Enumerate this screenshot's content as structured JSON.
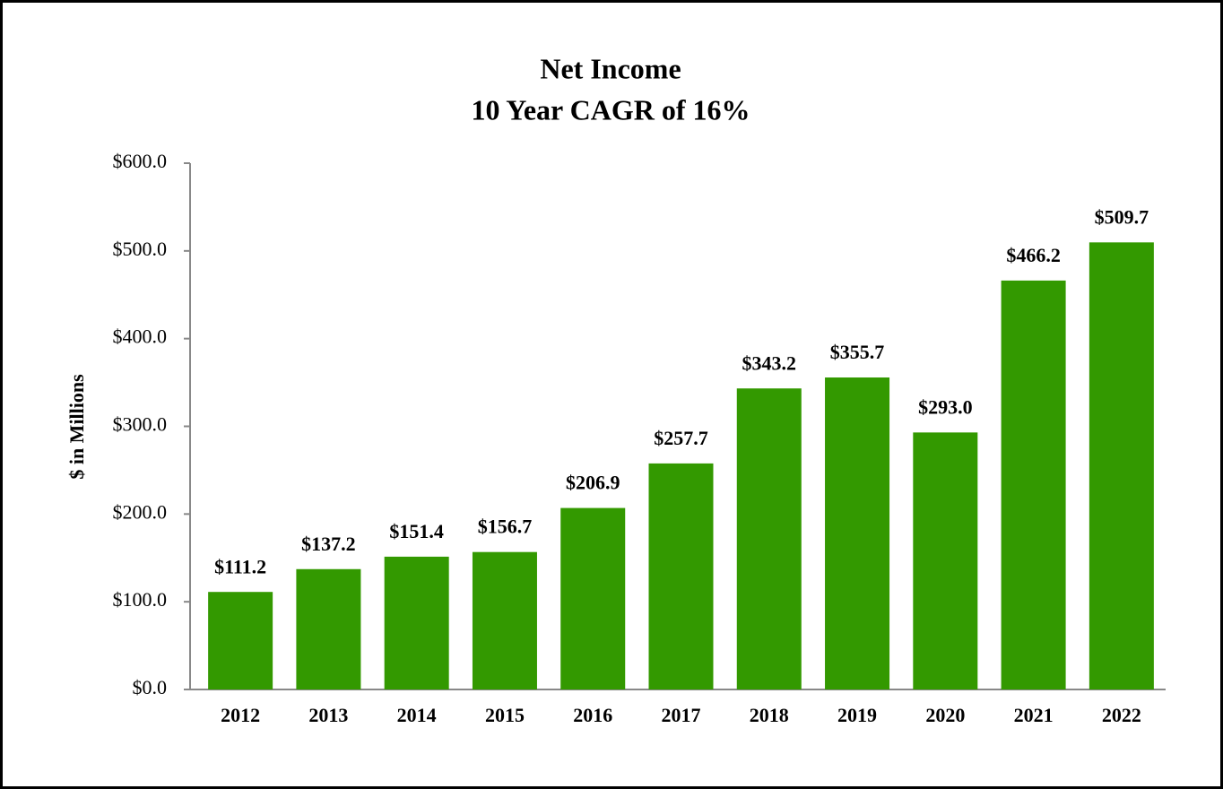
{
  "chart_data": {
    "type": "bar",
    "title": "Net Income",
    "subtitle": "10 Year CAGR of 16%",
    "y_label": "$ in Millions",
    "categories": [
      "2012",
      "2013",
      "2014",
      "2015",
      "2016",
      "2017",
      "2018",
      "2019",
      "2020",
      "2021",
      "2022"
    ],
    "values": [
      111.2,
      137.2,
      151.4,
      156.7,
      206.9,
      257.7,
      343.2,
      355.7,
      293.0,
      466.2,
      509.7
    ],
    "value_labels": [
      "$111.2",
      "$137.2",
      "$151.4",
      "$156.7",
      "$206.9",
      "$257.7",
      "$343.2",
      "$355.7",
      "$293.0",
      "$466.2",
      "$509.7"
    ],
    "color": "#339900",
    "ylim": [
      0,
      600
    ],
    "yticks": [
      {
        "value": 0,
        "label": "$0.0"
      },
      {
        "value": 100,
        "label": "$100.0"
      },
      {
        "value": 200,
        "label": "$200.0"
      },
      {
        "value": 300,
        "label": "$300.0"
      },
      {
        "value": 400,
        "label": "$400.0"
      },
      {
        "value": 500,
        "label": "$500.0"
      },
      {
        "value": 600,
        "label": "$600.0"
      }
    ],
    "grid": false
  }
}
